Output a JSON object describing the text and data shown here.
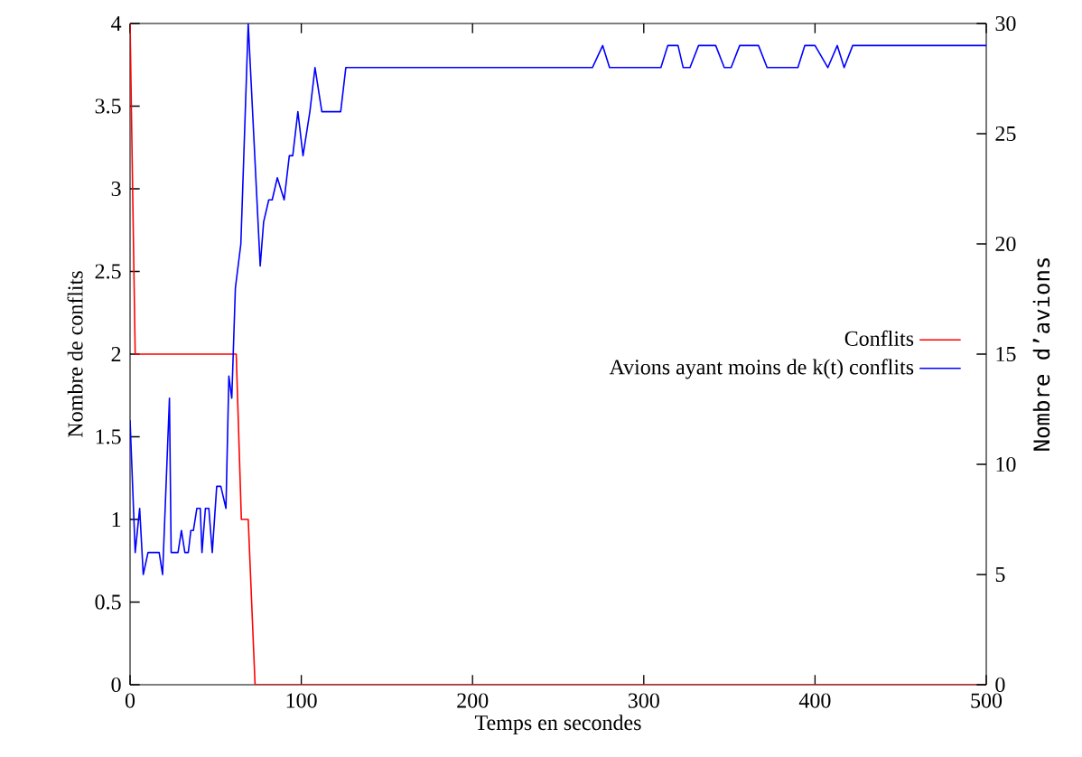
{
  "chart_data": {
    "type": "line",
    "xlabel": "Temps en secondes",
    "ylabel": "Nombre de conflits",
    "y2label": "Nombre d’avions",
    "xlim": [
      0,
      500
    ],
    "xticks": [
      0,
      100,
      200,
      300,
      400,
      500
    ],
    "ylim": [
      0,
      4
    ],
    "yticks": [
      0,
      0.5,
      1,
      1.5,
      2,
      2.5,
      3,
      3.5,
      4
    ],
    "y2lim": [
      0,
      30
    ],
    "y2ticks": [
      0,
      5,
      10,
      15,
      20,
      25,
      30
    ],
    "legend": "right",
    "series": [
      {
        "name": "Conflits",
        "color": "#ff0000",
        "x": [
          0,
          3,
          62,
          65,
          69,
          73,
          500
        ],
        "values": [
          4,
          2,
          2,
          1,
          1,
          0,
          0
        ]
      },
      {
        "name": "Avions ayant moins de k(t) conflits",
        "color": "#0000ff",
        "axis": "y2",
        "x": [
          0,
          3,
          5.6,
          7.7,
          10.5,
          17,
          19,
          23,
          24,
          28,
          30,
          32,
          34,
          35.5,
          37,
          39,
          41,
          42,
          44,
          46,
          48,
          50.6,
          53,
          56,
          57.7,
          59.4,
          61.5,
          64.7,
          69,
          76,
          78,
          81,
          83,
          86,
          90,
          93,
          95,
          98,
          101,
          105,
          108,
          112,
          123,
          126,
          270,
          276,
          280,
          310,
          314,
          320,
          323,
          327,
          332,
          342,
          347,
          351,
          356,
          367,
          372,
          390,
          394,
          400,
          407.5,
          413,
          417,
          422,
          500
        ],
        "values": [
          12,
          6,
          8,
          5,
          6,
          6,
          5,
          13,
          6,
          6,
          7,
          6,
          6,
          7,
          7,
          8,
          8,
          6,
          8,
          8,
          6,
          9,
          9,
          8,
          14,
          13,
          18,
          20,
          30,
          19,
          21,
          22,
          22,
          23,
          22,
          24,
          24,
          26,
          24,
          26,
          28,
          26,
          26,
          28,
          28,
          29,
          28,
          28,
          29,
          29,
          28,
          28,
          29,
          29,
          28,
          28,
          29,
          29,
          28,
          28,
          29,
          29,
          28,
          29,
          28,
          29,
          29
        ]
      }
    ]
  }
}
